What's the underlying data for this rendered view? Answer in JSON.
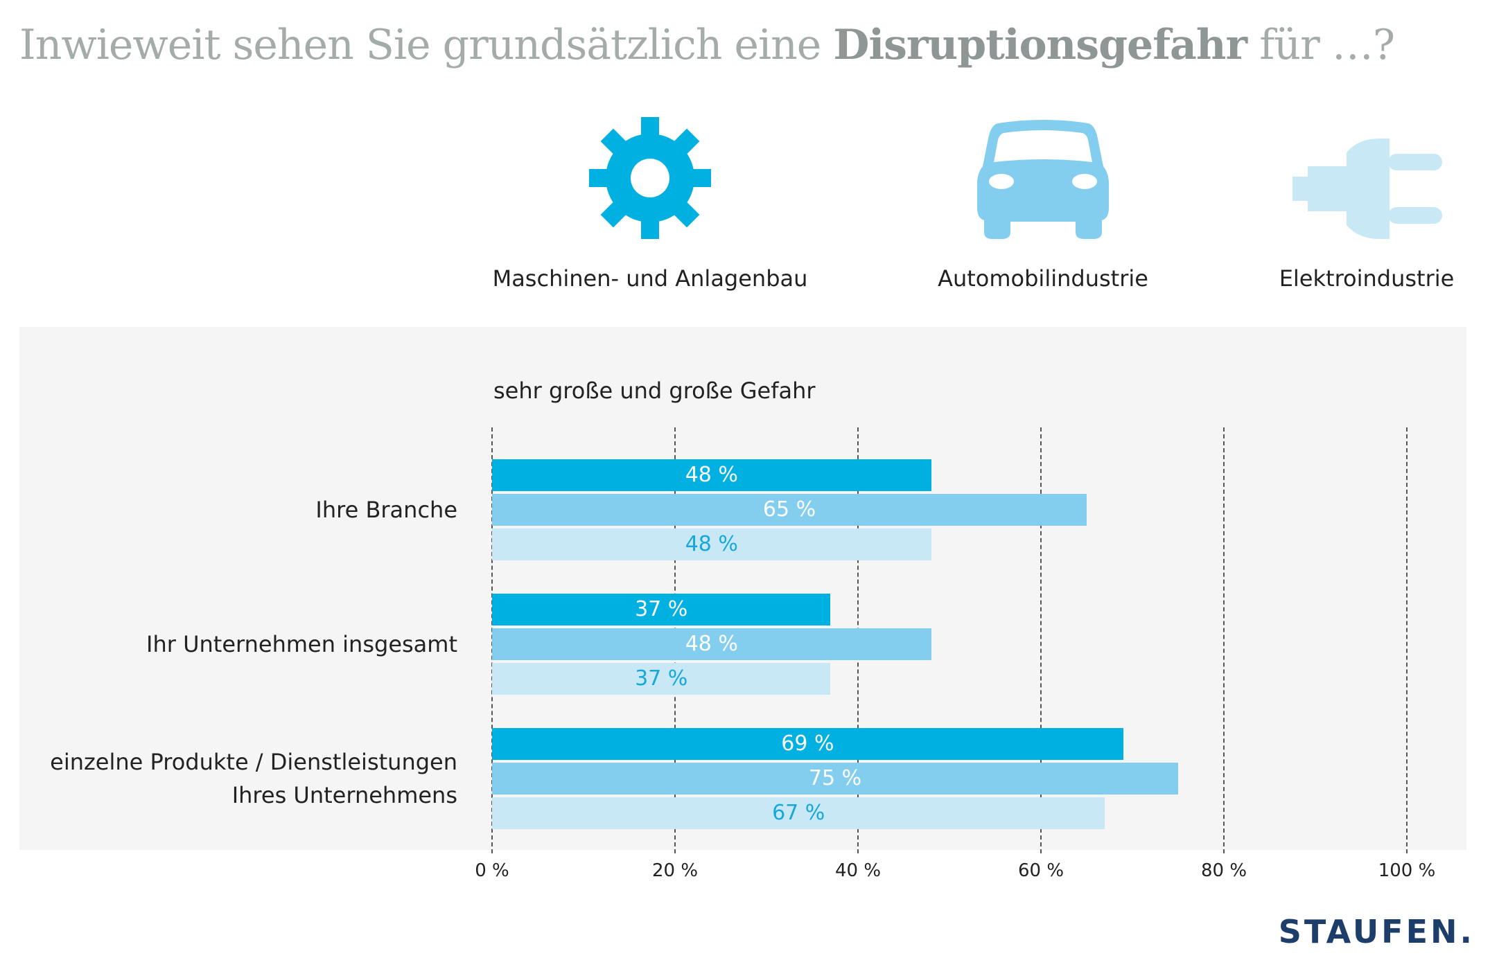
{
  "title_prefix": "Inwieweit sehen Sie grundsätzlich eine ",
  "title_bold": "Disruptionsgefahr",
  "title_suffix": " für …?",
  "legend": [
    {
      "label": "Maschinen- und Anlagenbau",
      "icon": "gear-icon",
      "color": "#00b0e0"
    },
    {
      "label": "Automobilindustrie",
      "icon": "car-icon",
      "color": "#83ceee"
    },
    {
      "label": "Elektroindustrie",
      "icon": "plug-icon",
      "color": "#c9e8f6"
    }
  ],
  "brand": "STAUFEN.",
  "chart_data": {
    "type": "bar",
    "orientation": "horizontal",
    "subtitle": "sehr große und große Gefahr",
    "categories": [
      "Ihre Branche",
      "Ihr Unternehmen insgesamt",
      "einzelne Produkte / Dienstleistungen Ihres Unternehmens"
    ],
    "category_lines": [
      [
        "Ihre Branche"
      ],
      [
        "Ihr Unternehmen insgesamt"
      ],
      [
        "einzelne Produkte / Dienstleistungen",
        "Ihres Unternehmens"
      ]
    ],
    "series": [
      {
        "name": "Maschinen- und Anlagenbau",
        "values": [
          48,
          37,
          69
        ],
        "color": "#00b0e0",
        "label_color": "#ffffff"
      },
      {
        "name": "Automobilindustrie",
        "values": [
          65,
          48,
          75
        ],
        "color": "#83ceee",
        "label_color": "#ffffff"
      },
      {
        "name": "Elektroindustrie",
        "values": [
          48,
          37,
          67
        ],
        "color": "#c9e8f6",
        "label_color": "#16a8da"
      }
    ],
    "value_labels": [
      [
        "48 %",
        "37 %",
        "69 %"
      ],
      [
        "65 %",
        "48 %",
        "75 %"
      ],
      [
        "48 %",
        "37 %",
        "67 %"
      ]
    ],
    "xlim": [
      0,
      100
    ],
    "xticks": [
      0,
      20,
      40,
      60,
      80,
      100
    ],
    "xtick_labels": [
      "0 %",
      "20 %",
      "40 %",
      "60 %",
      "80 %",
      "100 %"
    ],
    "grid": "vertical dashed",
    "legend_placement": "top"
  }
}
